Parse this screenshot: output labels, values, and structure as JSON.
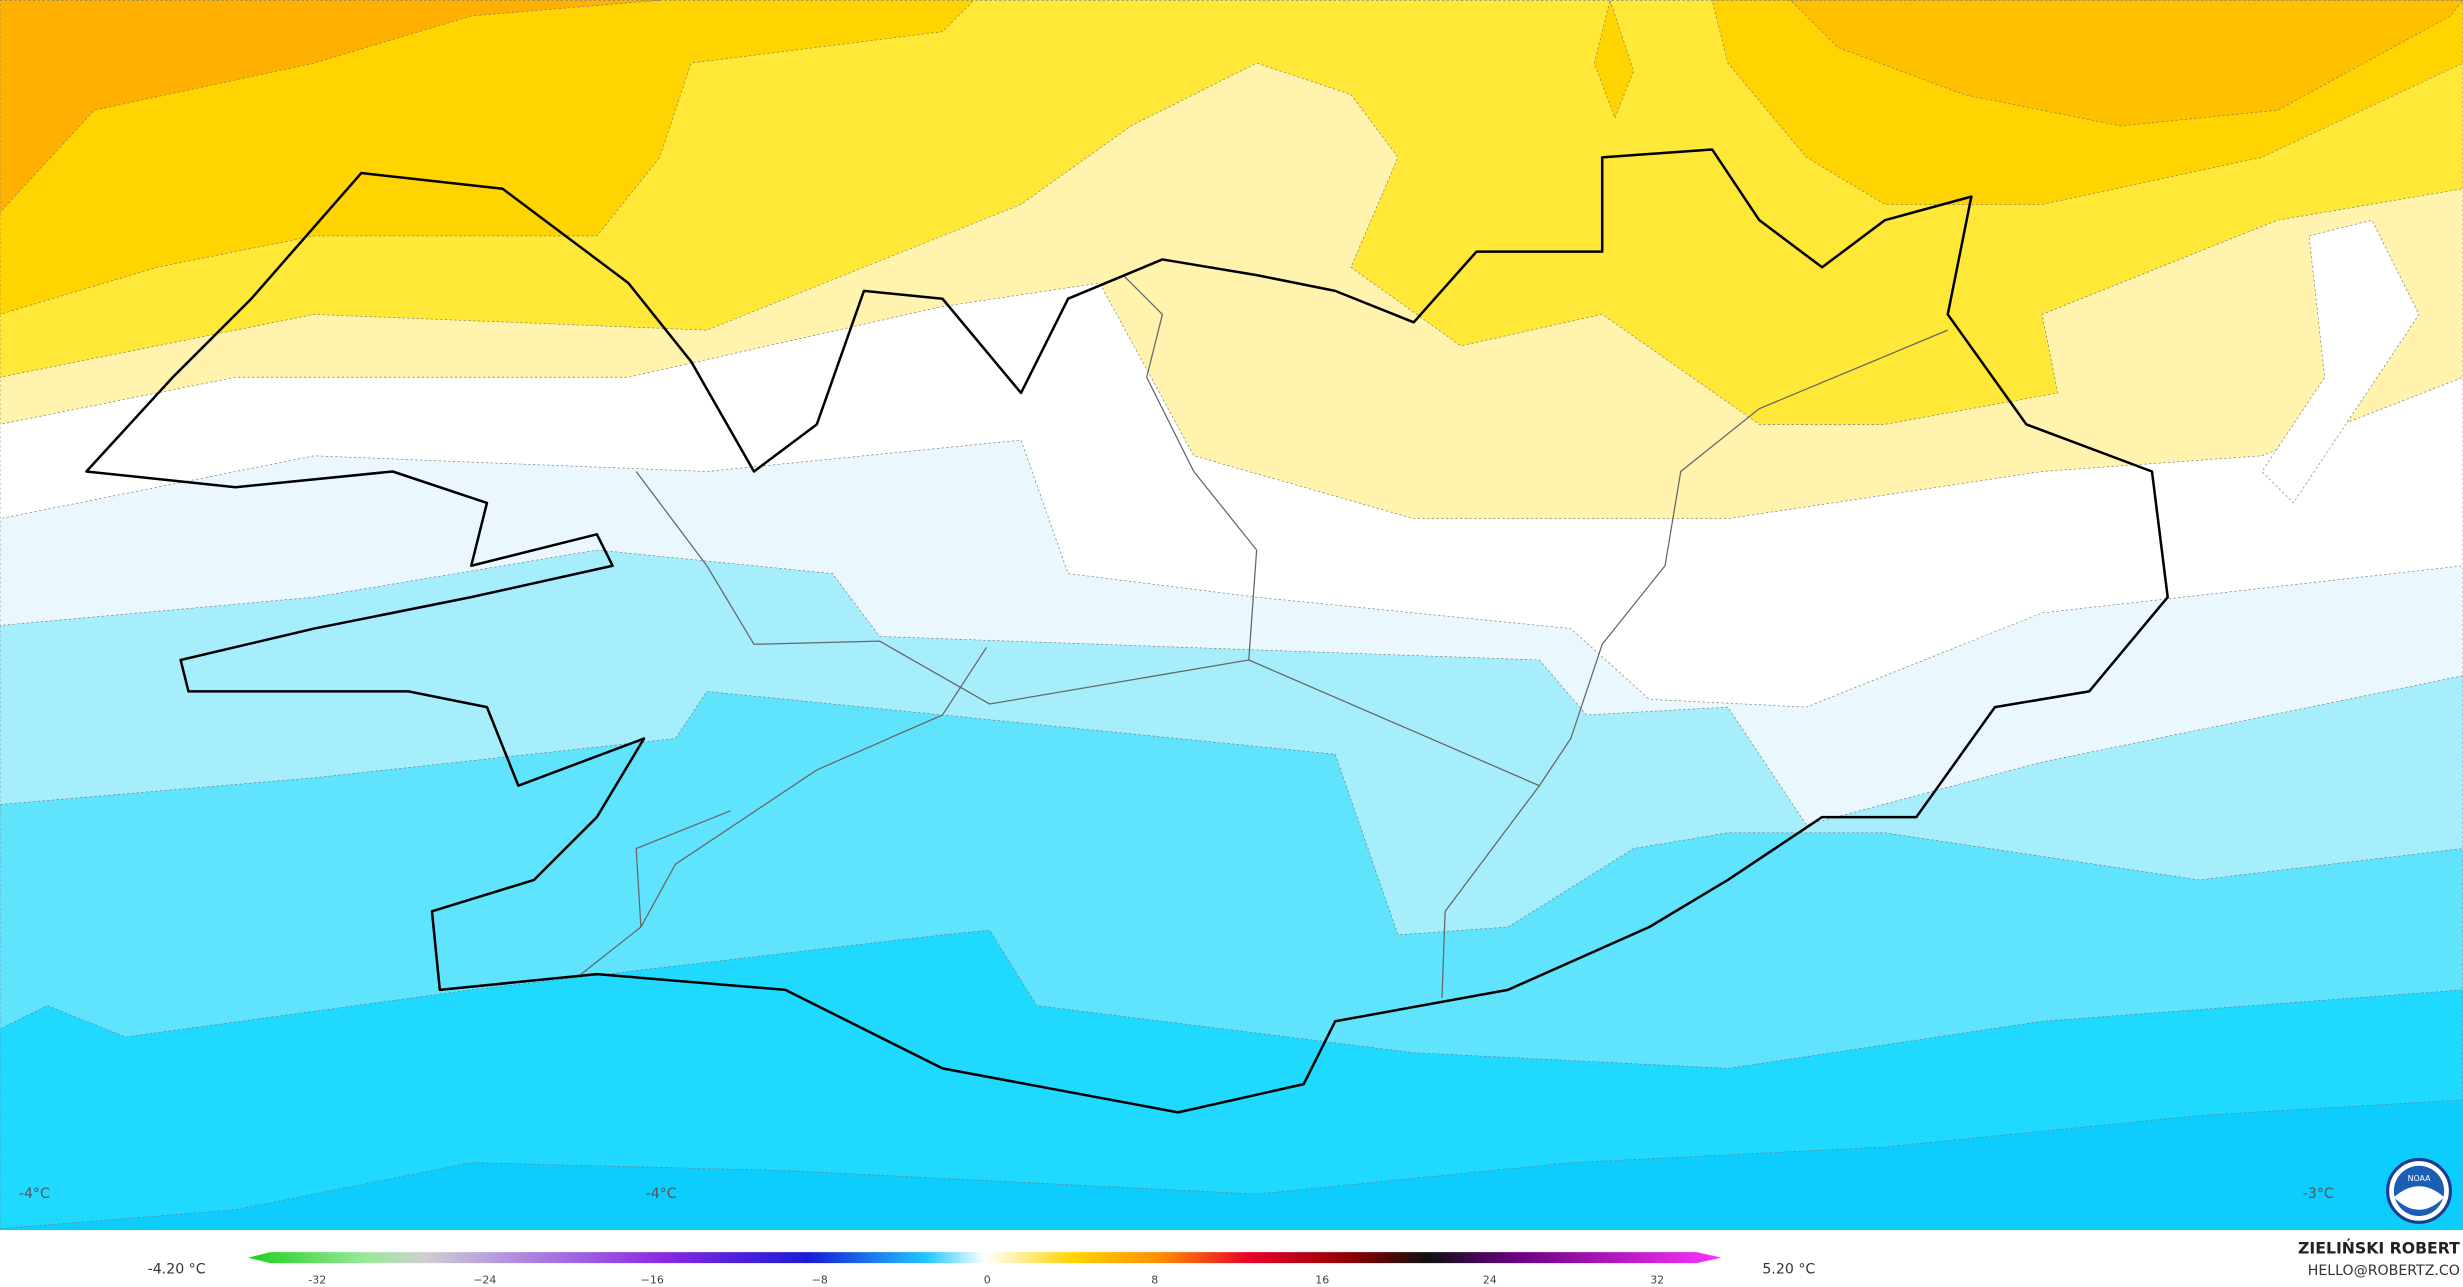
{
  "map_labels": [
    "-4°C",
    "-4°C",
    "-3°C"
  ],
  "colorbar": {
    "min_label": "-4.20 °C",
    "max_label": "5.20 °C",
    "ticks": [
      "-32",
      "−24",
      "−16",
      "−8",
      "0",
      "8",
      "16",
      "24",
      "32"
    ]
  },
  "credit": {
    "author": "ZIELIŃSKI ROBERT",
    "contact": "HELLO@ROBERTZ.CO",
    "logo": "NOAA"
  }
}
